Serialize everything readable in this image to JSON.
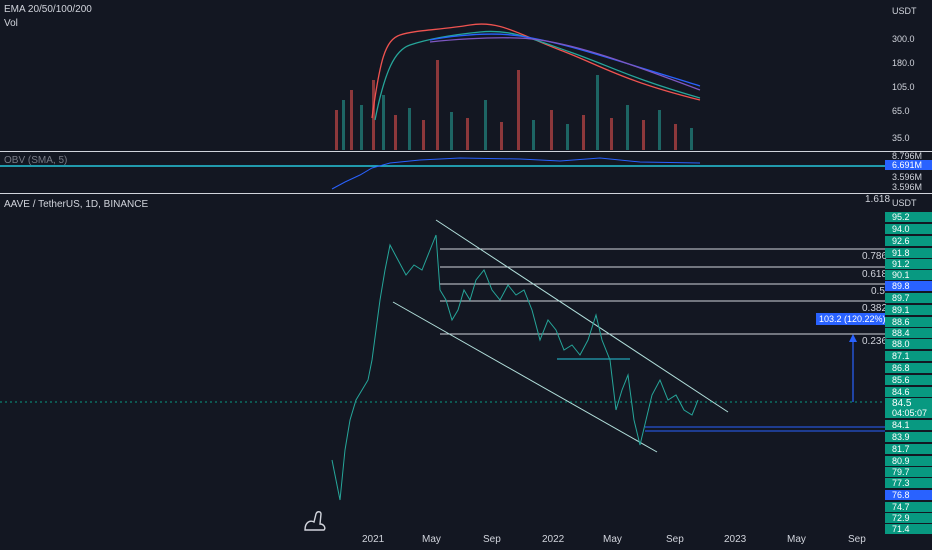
{
  "top_pane": {
    "ema_label": "EMA 20/50/100/200",
    "vol_label": "Vol",
    "currency": "USDT",
    "ticks": [
      "300.0",
      "180.0",
      "105.0",
      "65.0",
      "35.0"
    ]
  },
  "obv_pane": {
    "label": "OBV (SMA, 5)",
    "ticks": [
      "8.796M",
      "6.691M",
      "3.596M",
      "3.596M"
    ]
  },
  "main_pane": {
    "symbol_label": "AAVE / TetherUS, 1D, BINANCE",
    "currency": "USDT",
    "ticks": [
      "95.2",
      "94.0",
      "92.6",
      "91.8",
      "91.2",
      "90.1",
      "89.8",
      "89.7",
      "89.1",
      "88.6",
      "88.4",
      "88.0",
      "87.1",
      "86.8",
      "85.6",
      "84.6",
      "84.5",
      "04:05:07",
      "84.1",
      "83.9",
      "81.7",
      "80.9",
      "79.7",
      "77.3",
      "76.8",
      "74.7",
      "72.9",
      "71.4"
    ],
    "fib_levels": [
      "1.618",
      "0.786",
      "0.618",
      "0.5",
      "0.382",
      "0.236"
    ],
    "measure_label": "103.2 (120.22%) 103"
  },
  "time_axis": {
    "labels": [
      "2021",
      "May",
      "Sep",
      "2022",
      "May",
      "Sep",
      "2023",
      "May",
      "Sep"
    ]
  },
  "colors": {
    "background": "#131722",
    "up": "#26a69a",
    "down": "#ef5350",
    "channel": "#b2dfdb",
    "obv": "#2962ff",
    "price_badge": "#089981"
  }
}
